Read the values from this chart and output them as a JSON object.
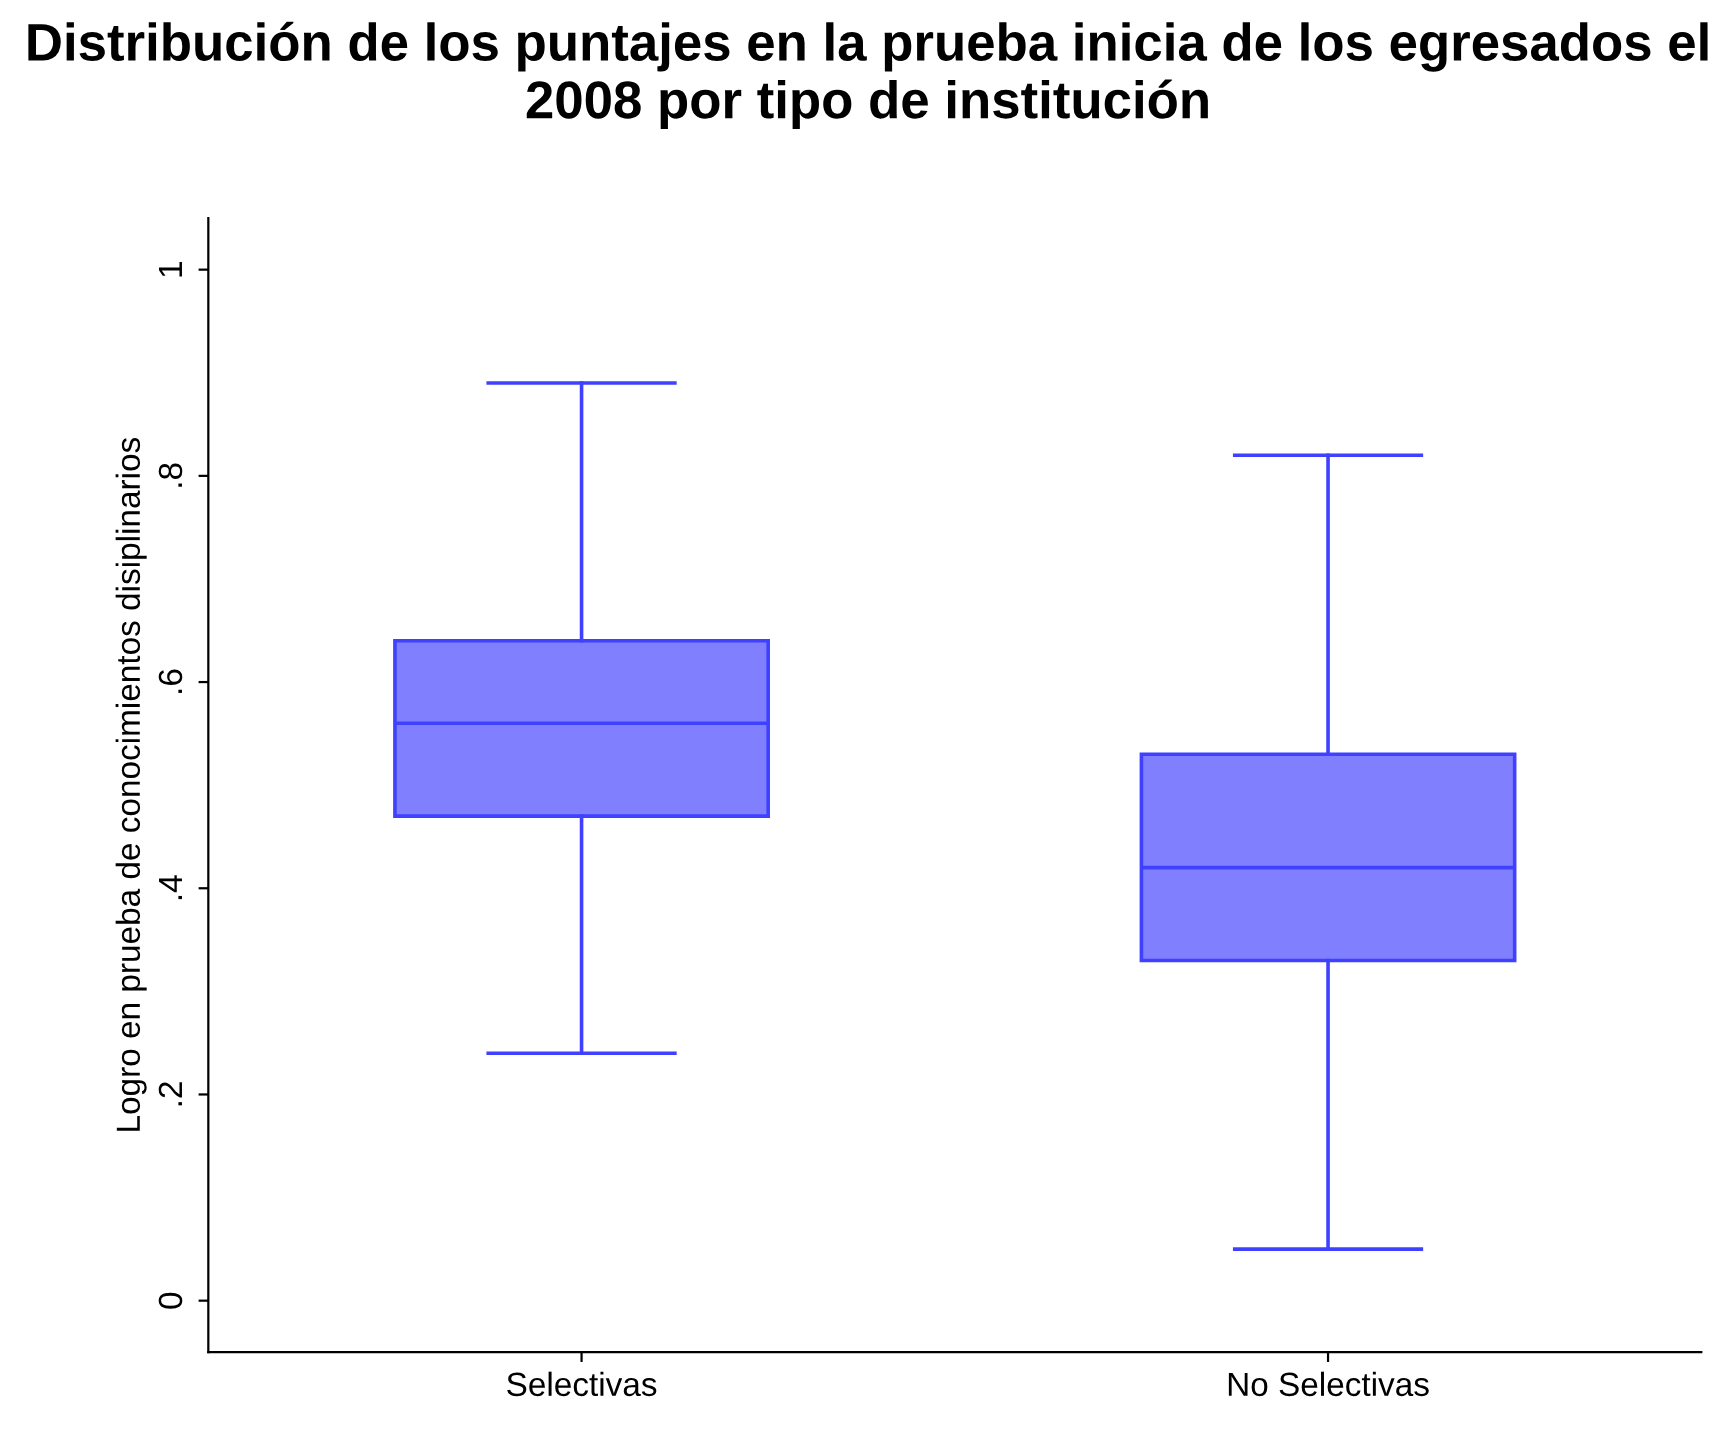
{
  "chart_data": {
    "type": "box",
    "title": "Distribución de los puntajes en la prueba inicia de los egresados el 2008 por tipo de institución",
    "ylabel": "Logro en prueba de conocimientos disiplinarios",
    "categories": [
      "Selectivas",
      "No Selectivas"
    ],
    "boxes": [
      {
        "low": 0.24,
        "q1": 0.47,
        "median": 0.56,
        "q3": 0.64,
        "high": 0.89
      },
      {
        "low": 0.05,
        "q1": 0.33,
        "median": 0.42,
        "q3": 0.53,
        "high": 0.82
      }
    ],
    "color": "#8080ff",
    "ylim": [
      -0.05,
      1.05
    ],
    "yticks": [
      {
        "value": 0,
        "label": "0"
      },
      {
        "value": 0.2,
        "label": ".2"
      },
      {
        "value": 0.4,
        "label": ".4"
      },
      {
        "value": 0.6,
        "label": ".6"
      },
      {
        "value": 0.8,
        "label": ".8"
      },
      {
        "value": 1,
        "label": "1"
      }
    ],
    "grid": false
  }
}
